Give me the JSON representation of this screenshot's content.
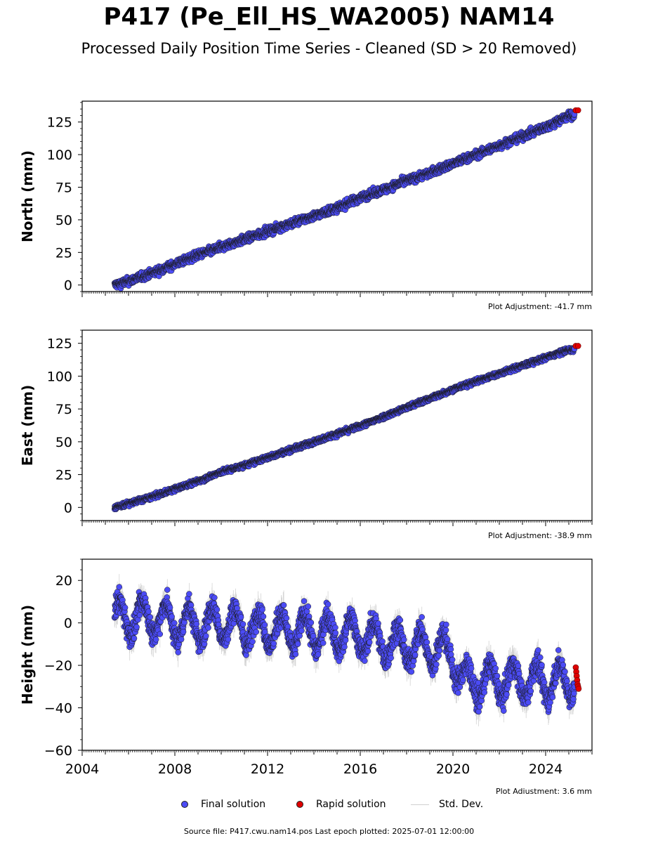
{
  "header": {
    "title": "P417 (Pe_Ell_HS_WA2005) NAM14",
    "subtitle": "Processed Daily Position Time Series - Cleaned (SD > 20 Removed)"
  },
  "legend": {
    "final_label": "Final solution",
    "rapid_label": "Rapid solution",
    "stddev_label": "Std. Dev."
  },
  "footer": {
    "text": "Source file: P417.cwu.nam14.pos  Last epoch plotted: 2025-07-01 12:00:00"
  },
  "colors": {
    "final": "#4b4bf5",
    "rapid": "#e00000",
    "stddev": "#b0b0b0",
    "marker_edge": "#1a1a1a"
  },
  "chart_data": [
    {
      "type": "scatter",
      "ylabel": "North (mm)",
      "ylim": [
        -5,
        141
      ],
      "yticks": [
        0,
        25,
        50,
        75,
        100,
        125
      ],
      "xlim": [
        2004.0,
        2026.0
      ],
      "adjustment": "Plot Adjustment: -41.7 mm",
      "series": [
        {
          "name": "Final solution",
          "x": [
            2005.4,
            2006.0,
            2007.0,
            2008.0,
            2009.0,
            2010.0,
            2011.0,
            2012.0,
            2013.0,
            2014.0,
            2015.0,
            2016.0,
            2017.0,
            2018.0,
            2019.0,
            2020.0,
            2021.0,
            2022.0,
            2023.0,
            2024.0,
            2025.0
          ],
          "y": [
            0,
            3,
            9,
            16,
            23,
            29,
            35,
            41,
            47,
            53,
            59,
            67,
            73,
            80,
            86,
            93,
            100,
            107,
            114,
            121,
            130
          ],
          "scatter_mm": 2.2,
          "stddev_mm": 2.0
        },
        {
          "name": "Rapid solution",
          "x": [
            2025.3,
            2025.4
          ],
          "y": [
            134,
            134
          ]
        }
      ]
    },
    {
      "type": "scatter",
      "ylabel": "East (mm)",
      "ylim": [
        -10,
        135
      ],
      "yticks": [
        0,
        25,
        50,
        75,
        100,
        125
      ],
      "xlim": [
        2004.0,
        2026.0
      ],
      "adjustment": "Plot Adjustment: -38.9 mm",
      "series": [
        {
          "name": "Final solution",
          "x": [
            2005.4,
            2006.0,
            2007.0,
            2008.0,
            2009.0,
            2010.0,
            2011.0,
            2012.0,
            2013.0,
            2014.0,
            2015.0,
            2016.0,
            2017.0,
            2018.0,
            2019.0,
            2020.0,
            2021.0,
            2022.0,
            2023.0,
            2024.0,
            2025.0
          ],
          "y": [
            0,
            3,
            8,
            14,
            20,
            27,
            32,
            38,
            44,
            50,
            56,
            62,
            69,
            76,
            83,
            90,
            96,
            102,
            108,
            114,
            120
          ],
          "scatter_mm": 1.3,
          "stddev_mm": 1.5
        },
        {
          "name": "Rapid solution",
          "x": [
            2025.3,
            2025.4
          ],
          "y": [
            123,
            123
          ]
        }
      ]
    },
    {
      "type": "scatter",
      "ylabel": "Height (mm)",
      "ylim": [
        -60,
        30
      ],
      "yticks": [
        -60,
        -40,
        -20,
        0,
        20
      ],
      "xlim": [
        2004.0,
        2026.0
      ],
      "xticks": [
        2004,
        2008,
        2012,
        2016,
        2020,
        2024
      ],
      "adjustment": "Plot Adjustment: 3.6 mm",
      "series": [
        {
          "name": "Final solution",
          "x": [
            2005.4,
            2006.0,
            2007.0,
            2008.0,
            2009.0,
            2010.0,
            2011.0,
            2012.0,
            2013.0,
            2014.0,
            2015.0,
            2016.0,
            2017.0,
            2018.0,
            2019.0,
            2019.9,
            2020.5,
            2021.0,
            2022.0,
            2023.0,
            2024.0,
            2025.0
          ],
          "y": [
            3,
            2,
            3,
            0,
            -1,
            0,
            -2,
            -3,
            -4,
            -4,
            -5,
            -6,
            -9,
            -11,
            -12,
            -14,
            -28,
            -28,
            -27,
            -27,
            -28,
            -27
          ],
          "seasonal_amplitude_mm": 8,
          "scatter_mm": 4,
          "stddev_mm": 5
        },
        {
          "name": "Rapid solution",
          "x": [
            2025.3,
            2025.32,
            2025.34,
            2025.36,
            2025.38,
            2025.4,
            2025.42
          ],
          "y": [
            -21,
            -23,
            -25,
            -27,
            -29,
            -30,
            -31
          ]
        }
      ]
    }
  ]
}
